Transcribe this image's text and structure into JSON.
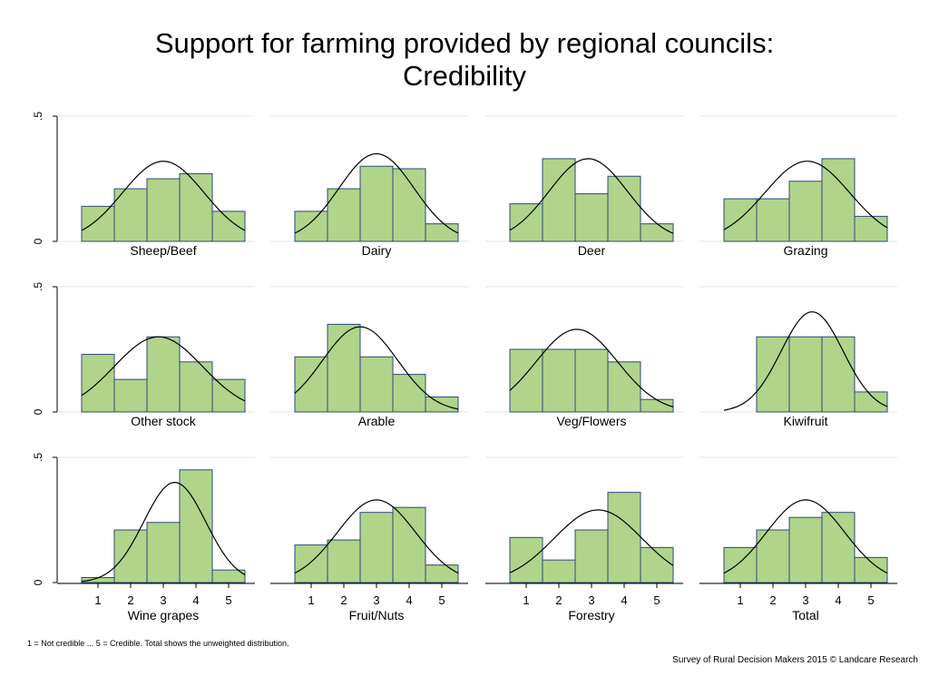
{
  "title_lines": [
    "Support for farming provided by regional councils:",
    "Credibility"
  ],
  "footnote": "1 = Not credible ... 5 = Credible. Total shows the unweighted distribution.",
  "credit": "Survey of Rural Decision Makers 2015 © Landcare Research",
  "colors": {
    "bar_fill": "#b0d48a",
    "bar_stroke": "#2b4a7a",
    "curve": "#000000",
    "grid": "#e4e4e4",
    "axis": "#000000"
  },
  "chart_data": {
    "type": "bar",
    "subtype": "histogram small multiples with normal density overlay",
    "categories": [
      "1",
      "2",
      "3",
      "4",
      "5"
    ],
    "ylim": [
      0,
      0.5
    ],
    "y_ticks": [
      {
        "value": 0,
        "label": "0"
      },
      {
        "value": 0.5,
        "label": ".5"
      }
    ],
    "grid": true,
    "panels": [
      {
        "name": "Sheep/Beef",
        "values": [
          0.14,
          0.21,
          0.25,
          0.27,
          0.12
        ],
        "curve": {
          "mean": 3.0,
          "sd": 1.25,
          "peak": 0.32
        }
      },
      {
        "name": "Dairy",
        "values": [
          0.12,
          0.21,
          0.3,
          0.29,
          0.07
        ],
        "curve": {
          "mean": 3.0,
          "sd": 1.15,
          "peak": 0.35
        }
      },
      {
        "name": "Deer",
        "values": [
          0.15,
          0.33,
          0.19,
          0.26,
          0.07
        ],
        "curve": {
          "mean": 2.9,
          "sd": 1.2,
          "peak": 0.33
        }
      },
      {
        "name": "Grazing",
        "values": [
          0.17,
          0.17,
          0.24,
          0.33,
          0.1
        ],
        "curve": {
          "mean": 3.05,
          "sd": 1.3,
          "peak": 0.32
        }
      },
      {
        "name": "Other stock",
        "values": [
          0.23,
          0.13,
          0.3,
          0.2,
          0.13
        ],
        "curve": {
          "mean": 2.85,
          "sd": 1.35,
          "peak": 0.3
        }
      },
      {
        "name": "Arable",
        "values": [
          0.22,
          0.35,
          0.22,
          0.15,
          0.06
        ],
        "curve": {
          "mean": 2.5,
          "sd": 1.15,
          "peak": 0.34
        }
      },
      {
        "name": "Veg/Flowers",
        "values": [
          0.25,
          0.25,
          0.25,
          0.2,
          0.05
        ],
        "curve": {
          "mean": 2.55,
          "sd": 1.25,
          "peak": 0.33
        }
      },
      {
        "name": "Kiwifruit",
        "values": [
          0.0,
          0.3,
          0.3,
          0.3,
          0.08
        ],
        "curve": {
          "mean": 3.2,
          "sd": 0.95,
          "peak": 0.4
        }
      },
      {
        "name": "Wine grapes",
        "values": [
          0.02,
          0.21,
          0.24,
          0.45,
          0.05
        ],
        "curve": {
          "mean": 3.35,
          "sd": 0.95,
          "peak": 0.4
        }
      },
      {
        "name": "Fruit/Nuts",
        "values": [
          0.15,
          0.17,
          0.28,
          0.3,
          0.07
        ],
        "curve": {
          "mean": 3.0,
          "sd": 1.2,
          "peak": 0.33
        }
      },
      {
        "name": "Forestry",
        "values": [
          0.18,
          0.09,
          0.21,
          0.36,
          0.14
        ],
        "curve": {
          "mean": 3.2,
          "sd": 1.35,
          "peak": 0.29
        }
      },
      {
        "name": "Total",
        "values": [
          0.14,
          0.21,
          0.26,
          0.28,
          0.1
        ],
        "curve": {
          "mean": 3.0,
          "sd": 1.2,
          "peak": 0.33
        }
      }
    ]
  }
}
